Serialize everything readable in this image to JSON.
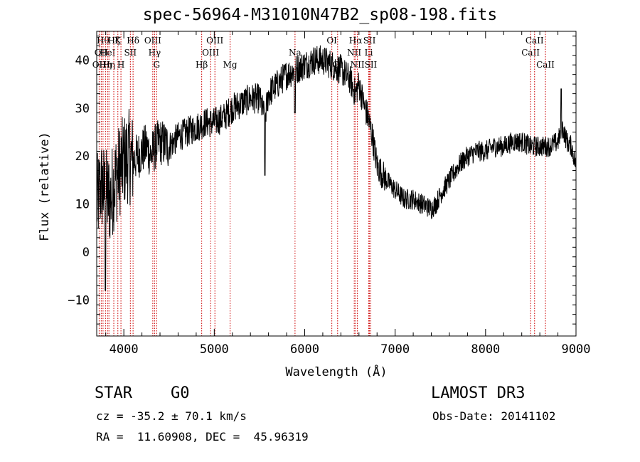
{
  "chart_data": {
    "type": "line",
    "title": "spec-56964-M31010N47B2_sp08-198.fits",
    "xlabel": "Wavelength (Å)",
    "ylabel": "Flux (relative)",
    "xlim": [
      3700,
      9000
    ],
    "ylim": [
      -17.5,
      46
    ],
    "xticks": [
      4000,
      5000,
      6000,
      7000,
      8000,
      9000
    ],
    "xtick_labels": [
      "4000",
      "5000",
      "6000",
      "7000",
      "8000",
      "9000"
    ],
    "yticks": [
      -10,
      0,
      10,
      20,
      30,
      40
    ],
    "ytick_labels": [
      "−10",
      "0",
      "10",
      "20",
      "30",
      "40"
    ],
    "series": [
      {
        "name": "flux",
        "color": "#000000",
        "x": [
          3700,
          3750,
          3800,
          3850,
          3900,
          3950,
          4000,
          4050,
          4100,
          4150,
          4200,
          4250,
          4300,
          4350,
          4400,
          4500,
          4600,
          4700,
          4800,
          4900,
          5000,
          5100,
          5200,
          5300,
          5400,
          5500,
          5560,
          5600,
          5700,
          5800,
          5900,
          6000,
          6100,
          6200,
          6300,
          6400,
          6500,
          6560,
          6600,
          6650,
          6700,
          6750,
          6800,
          6900,
          7000,
          7100,
          7200,
          7300,
          7400,
          7450,
          7500,
          7600,
          7700,
          7800,
          7900,
          8000,
          8100,
          8200,
          8300,
          8400,
          8500,
          8600,
          8700,
          8800,
          8850,
          8900,
          8950,
          9000
        ],
        "y": [
          10,
          14,
          12,
          11,
          15,
          17,
          19,
          20,
          19,
          20,
          21,
          22,
          20,
          22,
          23,
          22,
          24,
          25,
          26,
          27,
          27,
          28,
          30,
          31,
          32,
          32,
          28,
          33,
          35,
          37,
          38,
          39,
          40,
          40,
          39,
          38,
          36,
          33,
          35,
          31,
          28,
          24,
          18,
          15,
          13,
          11,
          11,
          10,
          9,
          10,
          12,
          15,
          18,
          20,
          21,
          21,
          22,
          22,
          23,
          23,
          22,
          22,
          22,
          23,
          26,
          23,
          22,
          18
        ]
      }
    ],
    "line_markers": [
      {
        "wavelength": 3727,
        "label": "OII",
        "row": 3
      },
      {
        "wavelength": 3750,
        "label": "OII",
        "row": 2
      },
      {
        "wavelength": 3770,
        "label": "Hθ",
        "row": 1
      },
      {
        "wavelength": 3797,
        "label": "Hη",
        "row": 3
      },
      {
        "wavelength": 3820,
        "label": "HeI",
        "row": 2
      },
      {
        "wavelength": 3835,
        "label": "Hη",
        "row": 3
      },
      {
        "wavelength": 3889,
        "label": "Hζ",
        "row": 1
      },
      {
        "wavelength": 3934,
        "label": "K",
        "row": 1
      },
      {
        "wavelength": 3968,
        "label": "H",
        "row": 3
      },
      {
        "wavelength": 4072,
        "label": "SII",
        "row": 2
      },
      {
        "wavelength": 4102,
        "label": "Hδ",
        "row": 1
      },
      {
        "wavelength": 4320,
        "label": "OIII",
        "row": 1
      },
      {
        "wavelength": 4340,
        "label": "Hγ",
        "row": 2
      },
      {
        "wavelength": 4363,
        "label": "G",
        "row": 3
      },
      {
        "wavelength": 4861,
        "label": "Hβ",
        "row": 3
      },
      {
        "wavelength": 4959,
        "label": "OIII",
        "row": 2
      },
      {
        "wavelength": 5007,
        "label": "OIII",
        "row": 1
      },
      {
        "wavelength": 5175,
        "label": "Mg",
        "row": 3
      },
      {
        "wavelength": 5893,
        "label": "Na",
        "row": 2
      },
      {
        "wavelength": 6300,
        "label": "OI",
        "row": 1
      },
      {
        "wavelength": 6364,
        "label": "OI",
        "row": 3
      },
      {
        "wavelength": 6548,
        "label": "NII",
        "row": 2
      },
      {
        "wavelength": 6563,
        "label": "Hα",
        "row": 1
      },
      {
        "wavelength": 6583,
        "label": "NII",
        "row": 3
      },
      {
        "wavelength": 6708,
        "label": "Li",
        "row": 2
      },
      {
        "wavelength": 6716,
        "label": "SII",
        "row": 1
      },
      {
        "wavelength": 6731,
        "label": "SII",
        "row": 3
      },
      {
        "wavelength": 8498,
        "label": "CaII",
        "row": 2
      },
      {
        "wavelength": 8542,
        "label": "CaII",
        "row": 1
      },
      {
        "wavelength": 8662,
        "label": "CaII",
        "row": 3
      }
    ]
  },
  "info": {
    "object_class": "STAR",
    "subclass": "G0",
    "survey": "LAMOST DR3",
    "redshift": "cz = -35.2 ± 70.1 km/s",
    "obs_date": "Obs-Date: 20141102",
    "coords": "RA =  11.60908, DEC =  45.96319"
  },
  "colors": {
    "axis": "#000000",
    "spectrum": "#000000",
    "marker": "#cc0000"
  }
}
